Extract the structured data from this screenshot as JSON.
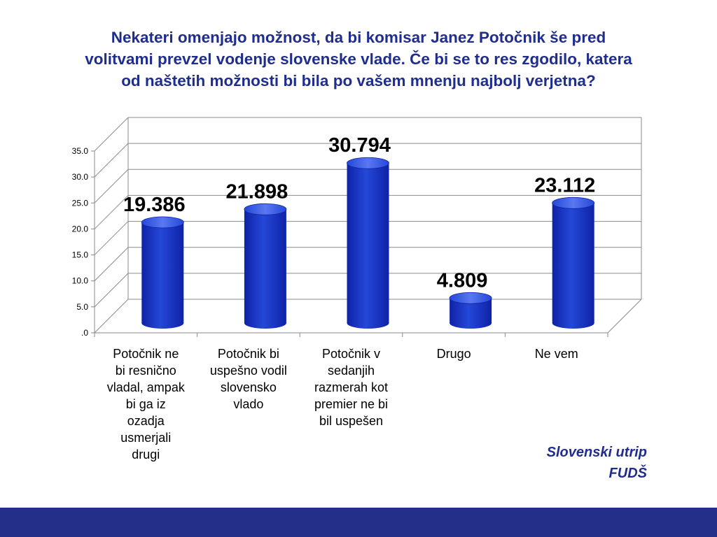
{
  "slide": {
    "title_lines": [
      "Nekateri omenjajo možnost, da bi komisar Janez Potočnik še pred",
      "volitvami prevzel vodenje slovenske vlade. Če bi se to res zgodilo, katera",
      "od naštetih možnosti bi bila po vašem mnenju najbolj verjetna?"
    ],
    "source_lines": [
      "Slovenski utrip",
      "FUDŠ"
    ]
  },
  "colors": {
    "bar": "#2448d8",
    "bar_dark": "#0f22a6",
    "bar_light": "#5a78f0",
    "title": "#1f2d8c",
    "footer": "#22308a"
  },
  "chart_data": {
    "type": "bar",
    "title": "",
    "xlabel": "",
    "ylabel": "",
    "ylim": [
      0,
      35
    ],
    "y_ticks": [
      0,
      5,
      10,
      15,
      20,
      25,
      30,
      35
    ],
    "y_tick_labels": [
      ".0",
      "5.0",
      "10.0",
      "15.0",
      "20.0",
      "25.0",
      "30.0",
      "35.0"
    ],
    "grid": true,
    "legend": "none",
    "categories": [
      [
        "Potočnik ne",
        "bi resnično",
        "vladal, ampak",
        "bi ga iz",
        "ozadja",
        "usmerjali",
        "drugi"
      ],
      [
        "Potočnik bi",
        "uspešno vodil",
        "slovensko",
        "vlado"
      ],
      [
        "Potočnik v",
        "sedanjih",
        "razmerah kot",
        "premier ne bi",
        "bil uspešen"
      ],
      [
        "Drugo"
      ],
      [
        "Ne vem"
      ]
    ],
    "values": [
      19.386,
      21.898,
      30.794,
      4.809,
      23.112
    ],
    "data_labels": [
      "19.386",
      "21.898",
      "30.794",
      "4.809",
      "23.112"
    ]
  }
}
